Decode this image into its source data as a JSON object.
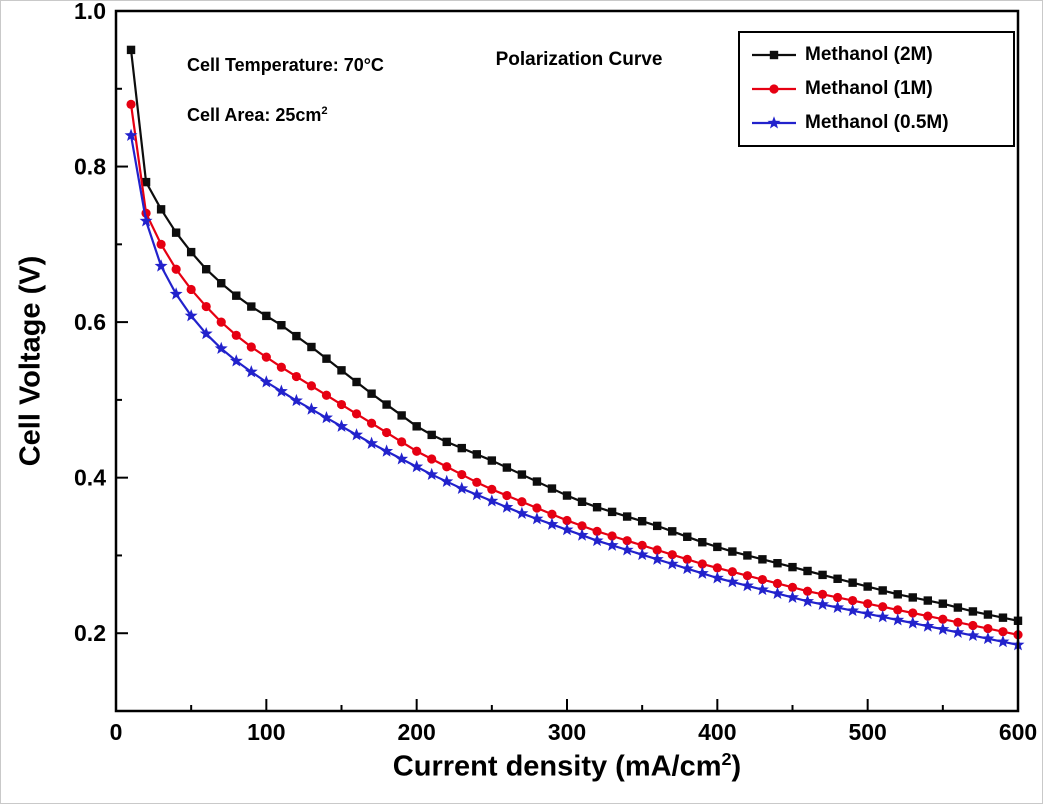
{
  "figure": {
    "title": "Polarization Curve",
    "annotations": {
      "temperature": "Cell Temperature: 70°C",
      "area_prefix": "Cell Area: 25cm",
      "area_sup": "2"
    },
    "xlabel": {
      "prefix": "Current density (mA/cm",
      "sup": "2",
      "suffix": ")"
    },
    "ylabel": "Cell Voltage (V)"
  },
  "chart_data": {
    "type": "line",
    "title": "Polarization Curve",
    "xlabel": "Current density (mA/cm2)",
    "ylabel": "Cell Voltage (V)",
    "annotations": [
      "Cell Temperature: 70°C",
      "Cell Area: 25cm2"
    ],
    "xlim": [
      0,
      600
    ],
    "ylim": [
      0.1,
      1.0
    ],
    "xticks": [
      0,
      100,
      200,
      300,
      400,
      500,
      600
    ],
    "yticks": [
      0.2,
      0.4,
      0.6,
      0.8,
      1.0
    ],
    "x_minor_ticks": [
      50,
      150,
      250,
      350,
      450,
      550
    ],
    "y_minor_ticks": [
      0.1,
      0.3,
      0.5,
      0.7,
      0.9
    ],
    "grid": false,
    "legend_position": "top-right",
    "frame_color": "#000000",
    "x": [
      10,
      20,
      30,
      40,
      50,
      60,
      70,
      80,
      90,
      100,
      110,
      120,
      130,
      140,
      150,
      160,
      170,
      180,
      190,
      200,
      210,
      220,
      230,
      240,
      250,
      260,
      270,
      280,
      290,
      300,
      310,
      320,
      330,
      340,
      350,
      360,
      370,
      380,
      390,
      400,
      410,
      420,
      430,
      440,
      450,
      460,
      470,
      480,
      490,
      500,
      510,
      520,
      530,
      540,
      550,
      560,
      570,
      580,
      590,
      600
    ],
    "series": [
      {
        "name": "Methanol (2M)",
        "color": "#0d0d0d",
        "marker": "square",
        "values": [
          0.95,
          0.78,
          0.745,
          0.715,
          0.69,
          0.668,
          0.65,
          0.634,
          0.62,
          0.608,
          0.596,
          0.582,
          0.568,
          0.553,
          0.538,
          0.523,
          0.508,
          0.494,
          0.48,
          0.466,
          0.455,
          0.446,
          0.438,
          0.43,
          0.422,
          0.413,
          0.404,
          0.395,
          0.386,
          0.377,
          0.369,
          0.362,
          0.356,
          0.35,
          0.344,
          0.338,
          0.331,
          0.324,
          0.317,
          0.311,
          0.305,
          0.3,
          0.295,
          0.29,
          0.285,
          0.28,
          0.275,
          0.27,
          0.265,
          0.26,
          0.255,
          0.25,
          0.246,
          0.242,
          0.238,
          0.233,
          0.228,
          0.224,
          0.22,
          0.216
        ]
      },
      {
        "name": "Methanol (1M)",
        "color": "#e60012",
        "marker": "circle",
        "values": [
          0.88,
          0.74,
          0.7,
          0.668,
          0.642,
          0.62,
          0.6,
          0.583,
          0.568,
          0.555,
          0.542,
          0.53,
          0.518,
          0.506,
          0.494,
          0.482,
          0.47,
          0.458,
          0.446,
          0.434,
          0.424,
          0.414,
          0.404,
          0.394,
          0.385,
          0.377,
          0.369,
          0.361,
          0.353,
          0.345,
          0.338,
          0.331,
          0.325,
          0.319,
          0.313,
          0.307,
          0.301,
          0.295,
          0.289,
          0.284,
          0.279,
          0.274,
          0.269,
          0.264,
          0.259,
          0.254,
          0.25,
          0.246,
          0.242,
          0.238,
          0.234,
          0.23,
          0.226,
          0.222,
          0.218,
          0.214,
          0.21,
          0.206,
          0.202,
          0.198
        ]
      },
      {
        "name": "Methanol (0.5M)",
        "color": "#2222cc",
        "marker": "star",
        "values": [
          0.84,
          0.73,
          0.672,
          0.636,
          0.608,
          0.585,
          0.566,
          0.55,
          0.536,
          0.523,
          0.511,
          0.499,
          0.488,
          0.477,
          0.466,
          0.455,
          0.444,
          0.434,
          0.424,
          0.414,
          0.404,
          0.395,
          0.386,
          0.378,
          0.37,
          0.362,
          0.354,
          0.347,
          0.34,
          0.333,
          0.326,
          0.319,
          0.313,
          0.307,
          0.301,
          0.295,
          0.289,
          0.283,
          0.277,
          0.271,
          0.266,
          0.261,
          0.256,
          0.251,
          0.246,
          0.241,
          0.237,
          0.233,
          0.229,
          0.225,
          0.221,
          0.217,
          0.213,
          0.209,
          0.205,
          0.201,
          0.197,
          0.193,
          0.189,
          0.185
        ]
      }
    ]
  }
}
